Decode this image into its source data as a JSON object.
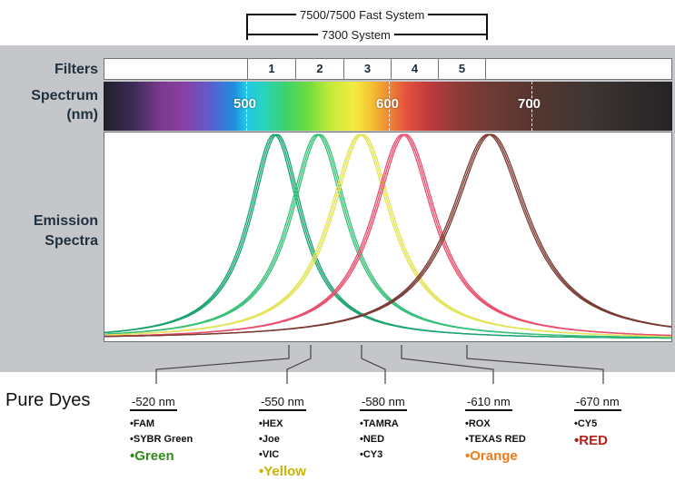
{
  "systems": {
    "outer_label": "7500/7500 Fast System",
    "inner_label": "7300 System"
  },
  "rows": {
    "filters_label": "Filters",
    "spectrum_label_line1": "Spectrum",
    "spectrum_label_line2": "(nm)",
    "emission_label_line1": "Emission",
    "emission_label_line2": "Spectra"
  },
  "filters": [
    "1",
    "2",
    "3",
    "4",
    "5"
  ],
  "spectrum_ticks": [
    {
      "label": "500",
      "nm": 500
    },
    {
      "label": "600",
      "nm": 600
    },
    {
      "label": "700",
      "nm": 700
    }
  ],
  "emission_peaks_nm": [
    520,
    550,
    580,
    610,
    670
  ],
  "colors": {
    "curve_green": "#1aa36e",
    "curve_green2": "#39c07a",
    "curve_yellow": "#e4e45a",
    "curve_red": "#e8506e",
    "curve_brown": "#7a3b34",
    "label_green": "#2f8a1e",
    "label_yellow": "#c8b400",
    "label_orange": "#f07c1a",
    "label_red": "#b3201c"
  },
  "pure_dyes_label": "Pure Dyes",
  "dyes": [
    {
      "wavelength": "-520 nm",
      "names": [
        "•FAM",
        "•SYBR Green"
      ],
      "color_name": "•Green",
      "color": "#2f8a1e"
    },
    {
      "wavelength": "-550 nm",
      "names": [
        "•HEX",
        "•Joe",
        "•VIC"
      ],
      "color_name": "•Yellow",
      "color": "#c8b400"
    },
    {
      "wavelength": "-580 nm",
      "names": [
        "•TAMRA",
        "•NED",
        "•CY3"
      ],
      "color_name": "",
      "color": ""
    },
    {
      "wavelength": "-610 nm",
      "names": [
        "•ROX",
        "•TEXAS RED"
      ],
      "color_name": "•Orange",
      "color": "#f07c1a"
    },
    {
      "wavelength": "-670 nm",
      "names": [
        "•CY5"
      ],
      "color_name": "•RED",
      "color": "#b3201c"
    }
  ]
}
